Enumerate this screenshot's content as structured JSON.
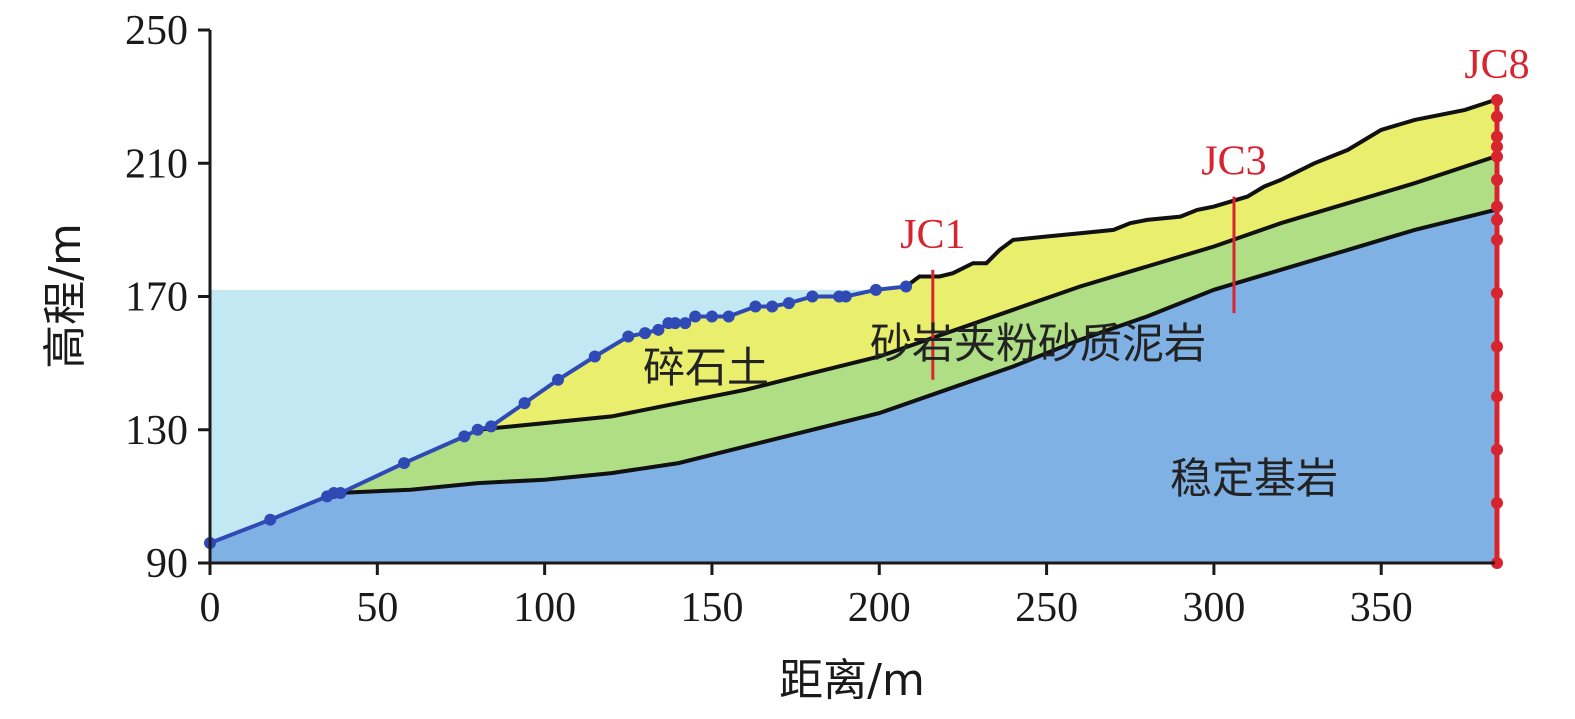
{
  "chart_data": {
    "type": "area",
    "title": "",
    "xlabel": "距离/m",
    "ylabel": "高程/m",
    "xlim": [
      0,
      384
    ],
    "ylim": [
      90,
      250
    ],
    "xticks": [
      0,
      50,
      100,
      150,
      200,
      250,
      300,
      350
    ],
    "yticks": [
      90,
      130,
      170,
      210,
      250
    ],
    "water_level": 172,
    "colors": {
      "water": "#c2e8f4",
      "rubble": "#e9ef6c",
      "sandstone": "#b0de85",
      "bedrock": "#80b1e4",
      "boundary": "#111111",
      "survey_line": "#2f4ab5",
      "monitor": "#d8242e"
    },
    "series": [
      {
        "key": "ground_surface",
        "x": [
          0,
          18,
          35,
          38,
          40,
          58,
          76,
          80,
          84,
          94,
          104,
          115,
          125,
          130,
          134,
          137,
          139,
          142,
          145,
          150,
          155,
          163,
          168,
          173,
          180,
          188,
          190,
          199,
          208,
          212,
          218,
          222,
          228,
          232,
          236,
          240,
          250,
          260,
          270,
          275,
          280,
          290,
          295,
          300,
          310,
          315,
          320,
          330,
          335,
          340,
          350,
          360,
          375,
          384
        ],
        "y": [
          96,
          103,
          110,
          111,
          111,
          120,
          128,
          130,
          131,
          138,
          145,
          152,
          158,
          159,
          160,
          162,
          162,
          162,
          164,
          164,
          164,
          167,
          167,
          168,
          170,
          170,
          170,
          172,
          173,
          176,
          176,
          177,
          180,
          180,
          184,
          187,
          188,
          189,
          190,
          192,
          193,
          194,
          196,
          197,
          200,
          203,
          205,
          210,
          212,
          214,
          220,
          223,
          226,
          229
        ]
      },
      {
        "key": "rubble_base",
        "x": [
          38,
          60,
          80,
          100,
          120,
          140,
          160,
          180,
          200,
          220,
          240,
          260,
          280,
          300,
          320,
          340,
          360,
          384
        ],
        "y": [
          111,
          121,
          130,
          132,
          134,
          138,
          142,
          147,
          152,
          159,
          166,
          173,
          179,
          185,
          192,
          198,
          204,
          212
        ]
      },
      {
        "key": "bedrock_top",
        "x": [
          38,
          60,
          80,
          100,
          120,
          140,
          160,
          180,
          200,
          220,
          240,
          260,
          280,
          300,
          320,
          340,
          360,
          384
        ],
        "y": [
          111,
          112,
          114,
          115,
          117,
          120,
          125,
          130,
          135,
          142,
          149,
          157,
          164,
          172,
          178,
          184,
          190,
          196
        ]
      },
      {
        "key": "surveyed_points",
        "x": [
          0,
          18,
          35,
          37,
          39,
          58,
          76,
          80,
          84,
          94,
          104,
          115,
          125,
          130,
          134,
          137,
          139,
          142,
          145,
          150,
          155,
          163,
          168,
          173,
          180,
          188,
          190,
          199,
          208
        ],
        "y": [
          96,
          103,
          110,
          111,
          111,
          120,
          128,
          130,
          131,
          138,
          145,
          152,
          158,
          159,
          160,
          162,
          162,
          162,
          164,
          164,
          164,
          167,
          167,
          168,
          170,
          170,
          170,
          172,
          173
        ]
      }
    ],
    "layers": {
      "rubble": "碎石土",
      "sandstone": "砂岩夹粉砂质泥岩",
      "bedrock": "稳定基岩"
    },
    "boreholes": [
      {
        "name": "JC1",
        "x": 216,
        "top": 178,
        "bottom": 145
      },
      {
        "name": "JC3",
        "x": 306,
        "top": 200,
        "bottom": 165
      },
      {
        "name": "JC8",
        "x": 386,
        "top": 229,
        "bottom": 90,
        "points": [
          229,
          224,
          218,
          215,
          212,
          205,
          197,
          193,
          187,
          171,
          155,
          140,
          124,
          108,
          90
        ]
      }
    ]
  }
}
